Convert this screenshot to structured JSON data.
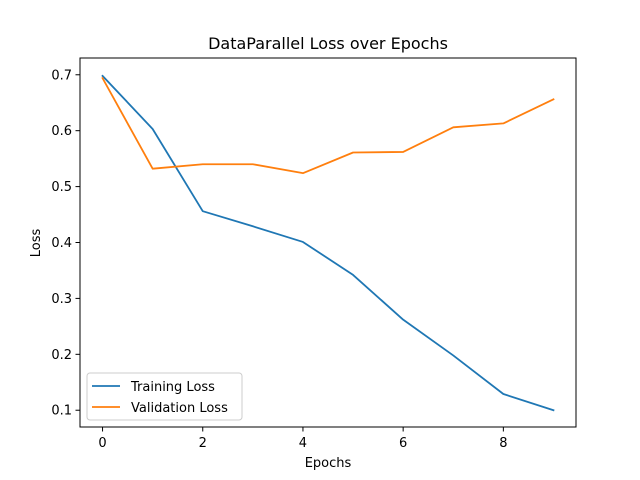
{
  "chart_data": {
    "type": "line",
    "title": "DataParallel Loss over Epochs",
    "xlabel": "Epochs",
    "ylabel": "Loss",
    "xlim": [
      -0.45,
      9.45
    ],
    "ylim": [
      0.07,
      0.73
    ],
    "x_ticks": [
      0,
      2,
      4,
      6,
      8
    ],
    "x_tick_labels": [
      "0",
      "2",
      "4",
      "6",
      "8"
    ],
    "y_ticks": [
      0.1,
      0.2,
      0.3,
      0.4,
      0.5,
      0.6,
      0.7
    ],
    "y_tick_labels": [
      "0.1",
      "0.2",
      "0.3",
      "0.4",
      "0.5",
      "0.6",
      "0.7"
    ],
    "grid": false,
    "legend_position": "lower-left",
    "x": [
      0,
      1,
      2,
      3,
      4,
      5,
      6,
      7,
      8,
      9
    ],
    "series": [
      {
        "name": "Training Loss",
        "color": "#1f77b4",
        "values": [
          0.698,
          0.603,
          0.456,
          0.429,
          0.401,
          0.342,
          0.262,
          0.198,
          0.129,
          0.1
        ]
      },
      {
        "name": "Validation Loss",
        "color": "#ff7f0e",
        "values": [
          0.694,
          0.532,
          0.54,
          0.54,
          0.524,
          0.561,
          0.562,
          0.606,
          0.613,
          0.656
        ]
      }
    ]
  }
}
